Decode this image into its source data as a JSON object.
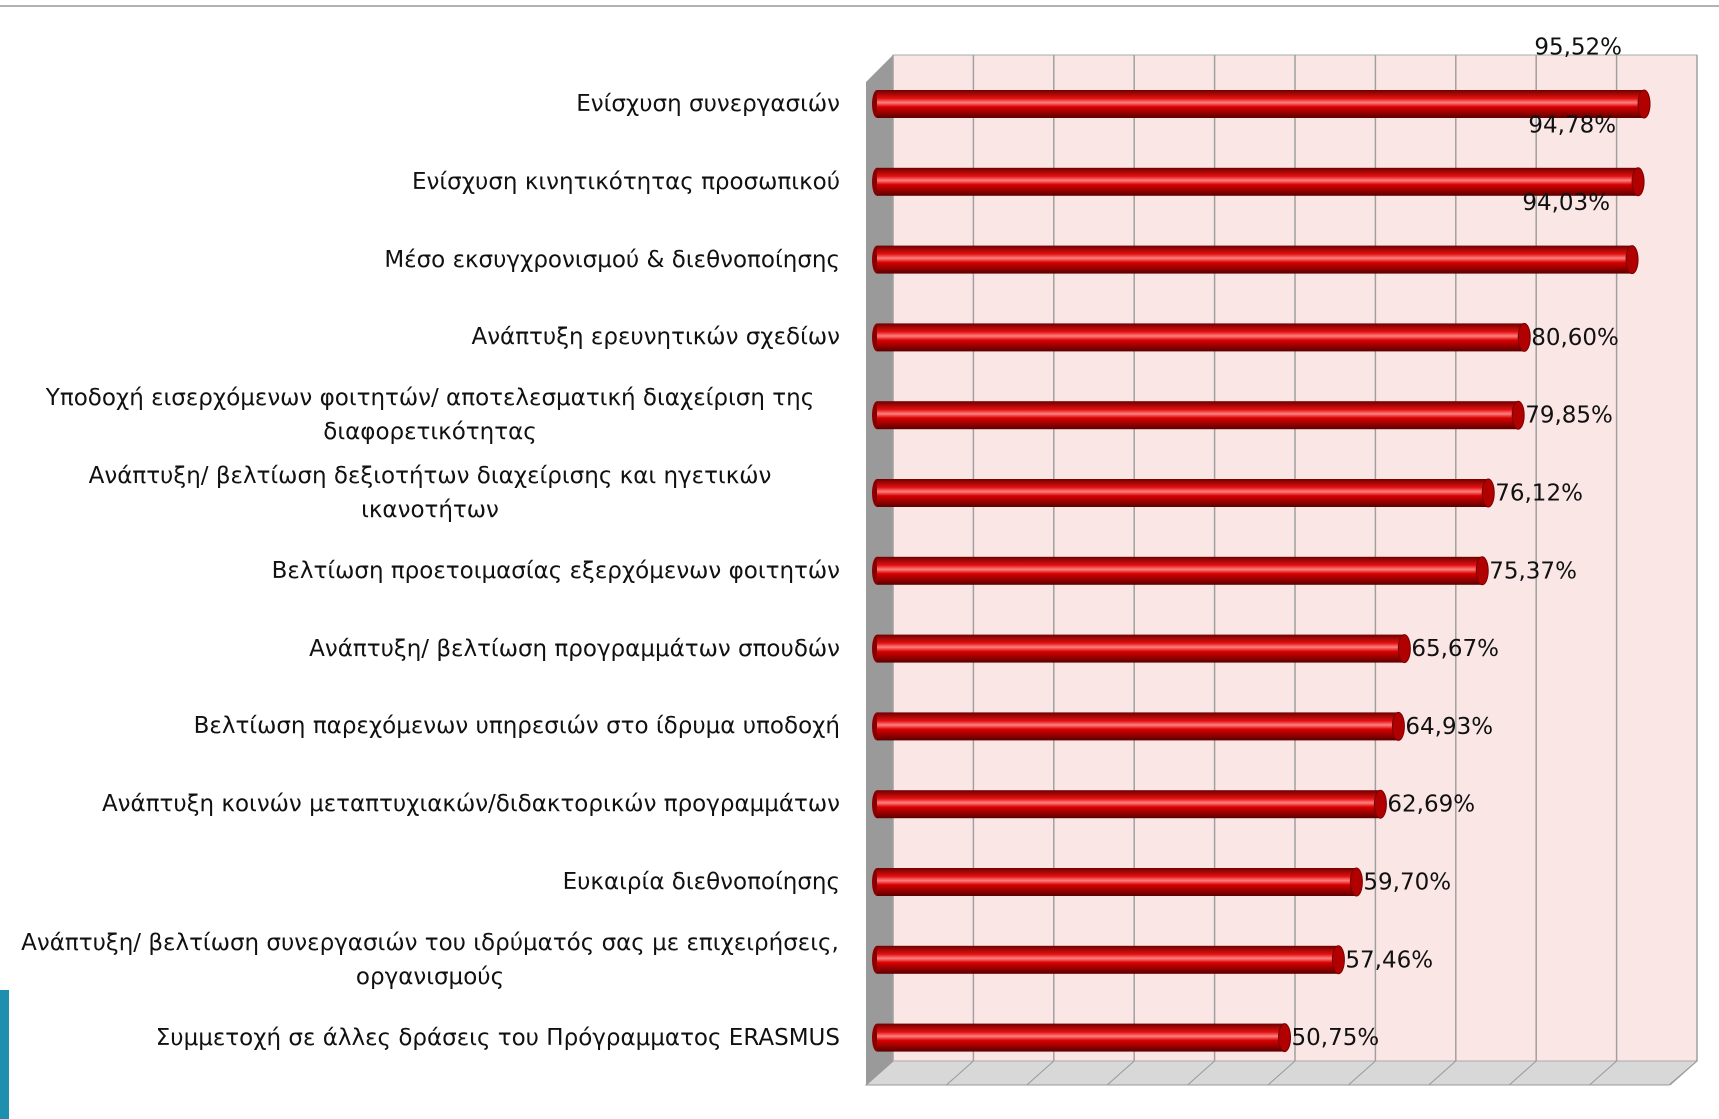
{
  "chart_data": {
    "type": "bar",
    "orientation": "horizontal",
    "categories": [
      "Ενίσχυση συνεργασιών",
      "Ενίσχυση κινητικότητας προσωπικού",
      "Μέσο εκσυγχρονισμού & διεθνοποίησης",
      "Ανάπτυξη ερευνητικών σχεδίων",
      "Υποδοχή εισερχόμενων φοιτητών/ αποτελεσματική διαχείριση της διαφορετικότητας",
      "Ανάπτυξη/ βελτίωση δεξιοτήτων διαχείρισης και ηγετικών ικανοτήτων",
      "Βελτίωση προετοιμασίας εξερχόμενων φοιτητών",
      "Ανάπτυξη/ βελτίωση προγραμμάτων σπουδών",
      "Βελτίωση παρεχόμενων υπηρεσιών στο ίδρυμα υποδοχή",
      "Ανάπτυξη κοινών μεταπτυχιακών/διδακτορικών προγραμμάτων",
      "Ευκαιρία διεθνοποίησης",
      "Ανάπτυξη/ βελτίωση συνεργασιών του ιδρύματός σας με επιχειρήσεις, οργανισμούς",
      "Συμμετοχή σε άλλες δράσεις του Πρόγραμματος  ERASMUS"
    ],
    "values": [
      95.52,
      94.78,
      94.03,
      80.6,
      79.85,
      76.12,
      75.37,
      65.67,
      64.93,
      62.69,
      59.7,
      57.46,
      50.75
    ],
    "value_labels": [
      "95,52%",
      "94,78%",
      "94,03%",
      "80,60%",
      "79,85%",
      "76,12%",
      "75,37%",
      "65,67%",
      "64,93%",
      "62,69%",
      "59,70%",
      "57,46%",
      "50,75%"
    ],
    "color": "#cc0000",
    "xlim": [
      0,
      100
    ],
    "xticks": [
      0,
      10,
      20,
      30,
      40,
      50,
      60,
      70,
      80,
      90,
      100
    ],
    "grid": true
  }
}
